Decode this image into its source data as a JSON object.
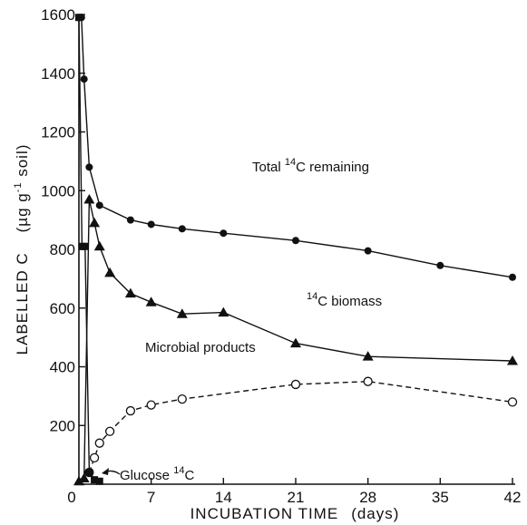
{
  "chart_data": {
    "type": "line",
    "xlabel": "INCUBATION TIME",
    "xlabel_unit": "(days)",
    "ylabel_prefix": "LABELLED  C",
    "ylabel_unit_open": "(µg g",
    "ylabel_unit_sup": "-1",
    "ylabel_unit_close": " soil)",
    "xlim": [
      0,
      42
    ],
    "ylim": [
      0,
      1600
    ],
    "xticks": [
      0,
      7,
      14,
      21,
      28,
      35,
      42
    ],
    "yticks": [
      0,
      200,
      400,
      600,
      800,
      1000,
      1200,
      1400,
      1600
    ],
    "grid": false,
    "series": [
      {
        "name": "Total ¹⁴C remaining",
        "label_main": "Total ",
        "label_sup": "14",
        "label_tail": "C  remaining",
        "marker": "filled-circle",
        "style": "solid",
        "x": [
          0,
          0.25,
          0.5,
          1,
          2,
          5,
          7,
          10,
          14,
          21,
          28,
          35,
          42
        ],
        "y": [
          1590,
          1590,
          1380,
          1080,
          950,
          900,
          885,
          870,
          855,
          830,
          795,
          745,
          705
        ]
      },
      {
        "name": "¹⁴C biomass",
        "label_main": "",
        "label_sup": "14",
        "label_tail": "C  biomass",
        "marker": "filled-triangle",
        "style": "solid",
        "x": [
          0,
          0.5,
          1,
          1.5,
          2,
          3,
          5,
          7,
          10,
          14,
          21,
          28,
          42
        ],
        "y": [
          10,
          20,
          970,
          890,
          810,
          720,
          650,
          620,
          580,
          585,
          480,
          435,
          420
        ]
      },
      {
        "name": "Microbial products",
        "label_main": "Microbial  products",
        "label_sup": "",
        "label_tail": "",
        "marker": "open-circle",
        "style": "dashed",
        "x": [
          1,
          1.5,
          2,
          3,
          5,
          7,
          10,
          21,
          28,
          42
        ],
        "y": [
          40,
          90,
          140,
          180,
          250,
          270,
          290,
          340,
          350,
          280
        ]
      },
      {
        "name": "Glucose ¹⁴C",
        "label_main": "Glucose ",
        "label_sup": "14",
        "label_tail": "C",
        "marker": "filled-square",
        "style": "solid",
        "x": [
          0,
          0.3,
          0.6,
          1,
          1.5,
          2
        ],
        "y": [
          1590,
          810,
          810,
          40,
          15,
          10
        ]
      }
    ]
  }
}
